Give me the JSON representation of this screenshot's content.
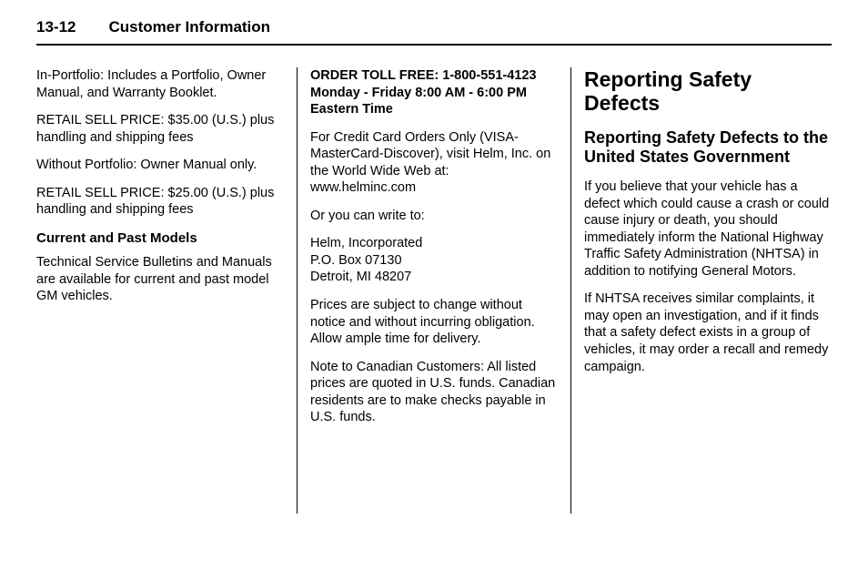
{
  "header": {
    "page_number": "13-12",
    "title": "Customer Information"
  },
  "col1": {
    "p1": "In-Portfolio: Includes a Portfolio, Owner Manual, and Warranty Booklet.",
    "p2": "RETAIL SELL PRICE: $35.00 (U.S.) plus handling and shipping fees",
    "p3": "Without Portfolio: Owner Manual only.",
    "p4": "RETAIL SELL PRICE: $25.00 (U.S.) plus handling and shipping fees",
    "sub1": "Current and Past Models",
    "p5": "Technical Service Bulletins and Manuals are available for current and past model GM vehicles."
  },
  "col2": {
    "bold1": "ORDER TOLL FREE: 1-800-551-4123 Monday - Friday 8:00 AM - 6:00 PM Eastern Time",
    "p1": "For Credit Card Orders Only (VISA-MasterCard-Discover), visit Helm, Inc. on the World Wide Web at: www.helminc.com",
    "p2": "Or you can write to:",
    "p3": "Helm, Incorporated\nP.O. Box 07130\nDetroit, MI  48207",
    "p4": "Prices are subject to change without notice and without incurring obligation. Allow ample time for delivery.",
    "p5": "Note to Canadian Customers: All listed prices are quoted in U.S. funds. Canadian residents are to make checks payable in U.S. funds."
  },
  "col3": {
    "h1": "Reporting Safety Defects",
    "h2": "Reporting Safety Defects to the United States Government",
    "p1": "If you believe that your vehicle has a defect which could cause a crash or could cause injury or death, you should immediately inform the National Highway Traffic Safety Administration (NHTSA) in addition to notifying General Motors.",
    "p2": "If NHTSA receives similar complaints, it may open an investigation, and if it finds that a safety defect exists in a group of vehicles, it may order a recall and remedy campaign."
  }
}
